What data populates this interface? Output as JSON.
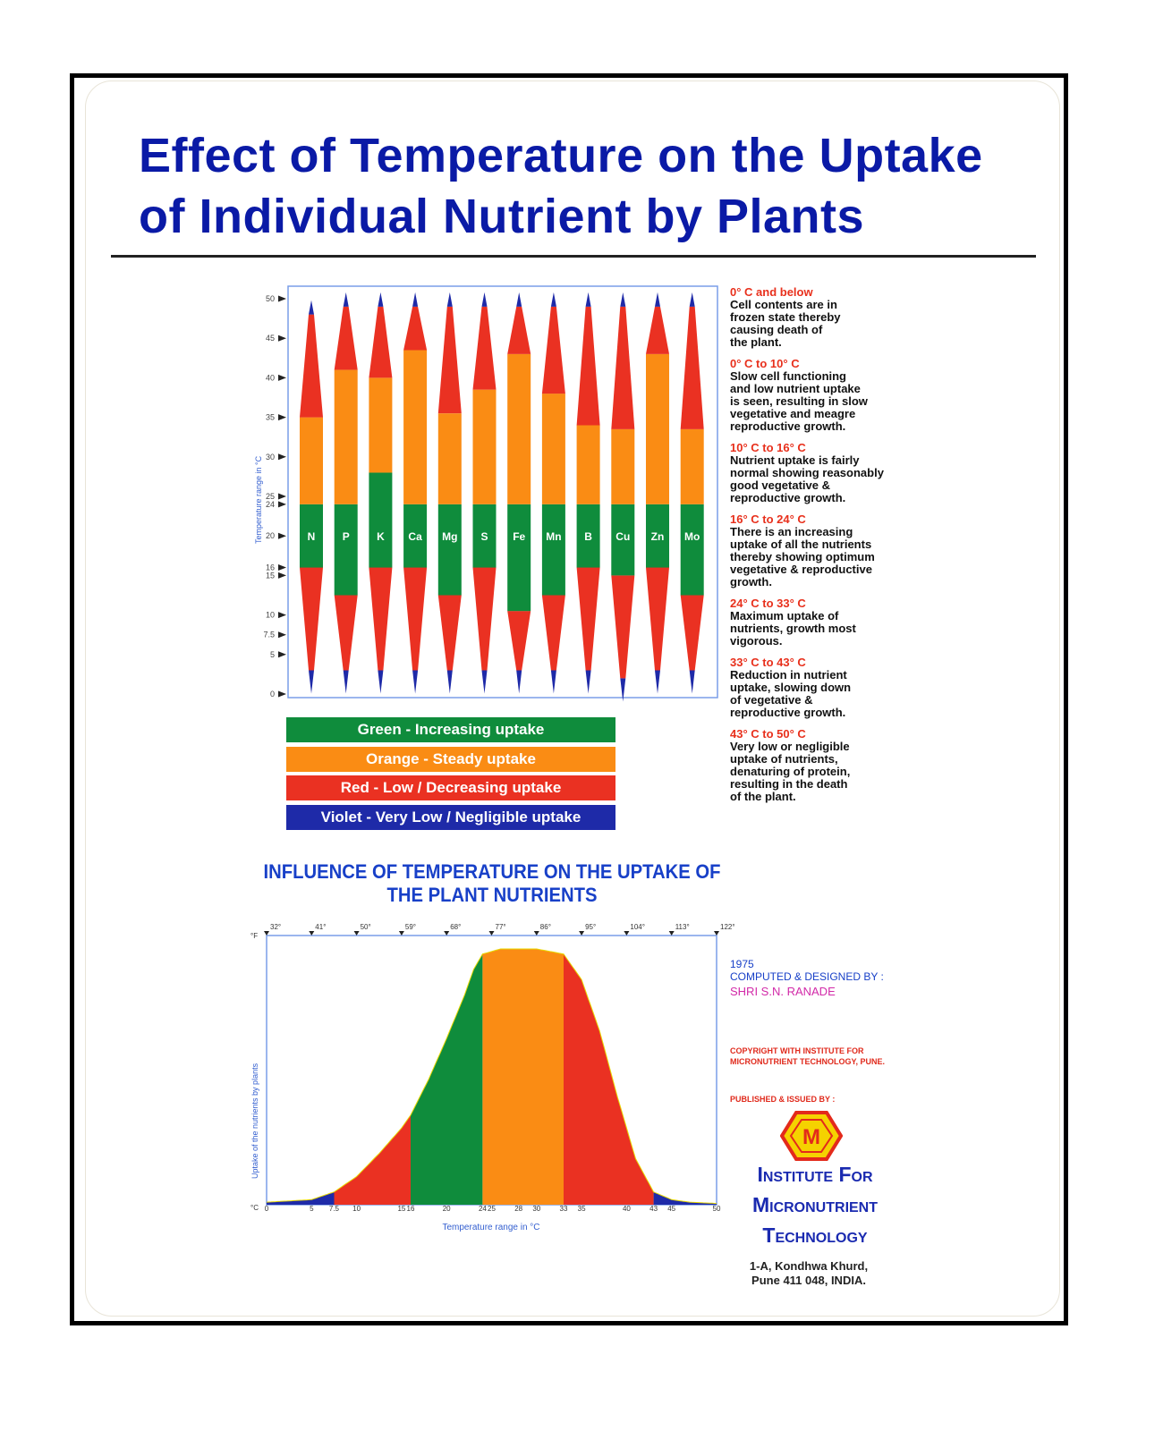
{
  "title": {
    "line1": "Effect of Temperature on the Uptake",
    "line2": "of Individual Nutrient by Plants"
  },
  "colors": {
    "green": "#0f8c3c",
    "orange": "#fa8c14",
    "red": "#ea3122",
    "violet": "#1e2aa8",
    "title_blue": "#0a1aa6",
    "note_red": "#e8301c"
  },
  "legend": [
    {
      "label": "Green - Increasing uptake",
      "color": "#0f8c3c"
    },
    {
      "label": "Orange - Steady uptake",
      "color": "#fa8c14"
    },
    {
      "label": "Red - Low / Decreasing uptake",
      "color": "#ea3122"
    },
    {
      "label": "Violet - Very Low / Negligible uptake",
      "color": "#1e2aa8"
    }
  ],
  "notes": [
    {
      "head": "0° C and below",
      "body": [
        "Cell contents are in",
        "frozen state thereby",
        "causing death of",
        "the plant."
      ]
    },
    {
      "head": "0° C  to 10° C",
      "body": [
        "Slow cell functioning",
        "and low nutrient uptake",
        "is seen, resulting in slow",
        "vegetative and meagre",
        "reproductive growth."
      ]
    },
    {
      "head": "10° C  to 16° C",
      "body": [
        "Nutrient uptake is fairly",
        "normal showing reasonably",
        "good vegetative &",
        "reproductive growth."
      ]
    },
    {
      "head": "16° C  to 24° C",
      "body": [
        "There is an increasing",
        "uptake of all the nutrients",
        "thereby showing optimum",
        "vegetative & reproductive",
        "growth."
      ]
    },
    {
      "head": "24° C  to 33° C",
      "body": [
        "Maximum uptake of",
        "nutrients, growth most",
        "vigorous."
      ]
    },
    {
      "head": "33° C  to 43° C",
      "body": [
        "Reduction in nutrient",
        "uptake, slowing down",
        "of vegetative &",
        "reproductive growth."
      ]
    },
    {
      "head": "43° C  to 50° C",
      "body": [
        "Very low or negligible",
        "uptake of nutrients,",
        "denaturing of protein,",
        "resulting in the death",
        "of the plant."
      ]
    }
  ],
  "chart_data": [
    {
      "type": "bar",
      "ylabel": "Temperature range in °C",
      "ylim": [
        0,
        50
      ],
      "y_ticks": [
        "0",
        "5",
        "7.5",
        "10",
        "15",
        "16",
        "20",
        "24",
        "25",
        "30",
        "35",
        "40",
        "45",
        "50"
      ],
      "y_tick_values": [
        0,
        5,
        7.5,
        10,
        15,
        16,
        20,
        24,
        25,
        30,
        35,
        40,
        45,
        50
      ],
      "categories": [
        "N",
        "P",
        "K",
        "Ca",
        "Mg",
        "S",
        "Fe",
        "Mn",
        "B",
        "Cu",
        "Zn",
        "Mo"
      ],
      "bands": [
        {
          "nutrient": "N",
          "green": [
            16,
            24
          ],
          "orange": [
            24,
            35
          ],
          "red_low": [
            3,
            16
          ],
          "red_high": [
            35,
            48
          ]
        },
        {
          "nutrient": "P",
          "green": [
            12.5,
            24
          ],
          "orange": [
            24,
            41
          ],
          "red_low": [
            3,
            12.5
          ],
          "red_high": [
            41,
            49
          ]
        },
        {
          "nutrient": "K",
          "green": [
            16,
            28
          ],
          "orange": [
            28,
            40
          ],
          "red_low": [
            3,
            16
          ],
          "red_high": [
            40,
            49
          ]
        },
        {
          "nutrient": "Ca",
          "green": [
            16,
            24
          ],
          "orange": [
            24,
            43.5
          ],
          "red_low": [
            3,
            16
          ],
          "red_high": [
            43.5,
            49
          ]
        },
        {
          "nutrient": "Mg",
          "green": [
            12.5,
            24
          ],
          "orange": [
            24,
            35.5
          ],
          "red_low": [
            3,
            12.5
          ],
          "red_high": [
            35.5,
            49
          ]
        },
        {
          "nutrient": "S",
          "green": [
            16,
            24
          ],
          "orange": [
            24,
            38.5
          ],
          "red_low": [
            3,
            16
          ],
          "red_high": [
            38.5,
            49
          ]
        },
        {
          "nutrient": "Fe",
          "green": [
            10.5,
            24
          ],
          "orange": [
            24,
            43
          ],
          "red_low": [
            3,
            10.5
          ],
          "red_high": [
            43,
            49
          ]
        },
        {
          "nutrient": "Mn",
          "green": [
            12.5,
            24
          ],
          "orange": [
            24,
            38
          ],
          "red_low": [
            3,
            12.5
          ],
          "red_high": [
            38,
            49
          ]
        },
        {
          "nutrient": "B",
          "green": [
            16,
            24
          ],
          "orange": [
            24,
            34
          ],
          "red_low": [
            3,
            16
          ],
          "red_high": [
            34,
            49
          ]
        },
        {
          "nutrient": "Cu",
          "green": [
            15,
            24
          ],
          "orange": [
            24,
            33.5
          ],
          "red_low": [
            2,
            15
          ],
          "red_high": [
            33.5,
            49
          ]
        },
        {
          "nutrient": "Zn",
          "green": [
            16,
            24
          ],
          "orange": [
            24,
            43
          ],
          "red_low": [
            3,
            16
          ],
          "red_high": [
            43,
            49
          ]
        },
        {
          "nutrient": "Mo",
          "green": [
            12.5,
            24
          ],
          "orange": [
            24,
            33.5
          ],
          "red_low": [
            3,
            12.5
          ],
          "red_high": [
            33.5,
            49
          ]
        }
      ]
    },
    {
      "type": "area",
      "title": "INFLUENCE OF TEMPERATURE ON THE UPTAKE OF THE PLANT NUTRIENTS",
      "title_lines": [
        "INFLUENCE OF TEMPERATURE ON THE UPTAKE OF",
        "THE PLANT NUTRIENTS"
      ],
      "xlabel": "Temperature range in °C",
      "ylabel": "Uptake of the nutrients by plants",
      "xlim": [
        0,
        50
      ],
      "x_ticks": [
        "0",
        "5",
        "7.5",
        "10",
        "15",
        "16",
        "20",
        "24",
        "25",
        "28",
        "30",
        "33",
        "35",
        "40",
        "43",
        "45",
        "50"
      ],
      "x_tick_values": [
        0,
        5,
        7.5,
        10,
        15,
        16,
        20,
        24,
        25,
        28,
        30,
        33,
        35,
        40,
        43,
        45,
        50
      ],
      "x_unit_c": "°C",
      "x_unit_f": "°F",
      "f_ticks": [
        "32°",
        "41°",
        "50°",
        "59°",
        "68°",
        "77°",
        "86°",
        "95°",
        "104°",
        "113°",
        "122°"
      ],
      "f_tick_values": [
        0,
        5,
        10,
        15,
        20,
        25,
        30,
        35,
        40,
        45,
        50
      ],
      "curve": {
        "x": [
          0,
          5,
          7.5,
          10,
          12.5,
          15,
          16,
          18,
          20,
          22,
          23,
          24,
          26,
          28,
          30,
          33,
          35,
          37,
          39,
          41,
          43,
          45,
          47,
          50
        ],
        "y": [
          1,
          2,
          5,
          11,
          20,
          30,
          35,
          49,
          65,
          82,
          92,
          98,
          100,
          100,
          100,
          98,
          88,
          68,
          42,
          18,
          5,
          2,
          1,
          0.5
        ]
      },
      "bands": [
        {
          "range": [
            0,
            7.5
          ],
          "color": "violet"
        },
        {
          "range": [
            7.5,
            16
          ],
          "color": "red"
        },
        {
          "range": [
            16,
            24
          ],
          "color": "green"
        },
        {
          "range": [
            24,
            33
          ],
          "color": "orange"
        },
        {
          "range": [
            33,
            43
          ],
          "color": "red"
        },
        {
          "range": [
            43,
            50
          ],
          "color": "violet"
        }
      ]
    }
  ],
  "credits": {
    "year": "1975",
    "designed_by": "COMPUTED & DESIGNED BY :",
    "designer": "SHRI S.N. RANADE",
    "copyright_line1": "COPYRIGHT WITH INSTITUTE FOR",
    "copyright_line2": "MICRONUTRIENT TECHNOLOGY, PUNE.",
    "published": "PUBLISHED & ISSUED BY :"
  },
  "institute": {
    "line1": "Institute For",
    "line2": "Micronutrient",
    "line3": "Technology",
    "address1": "1-A, Kondhwa Khurd,",
    "address2": "Pune 411 048, INDIA.",
    "logo_letters": "M",
    "logo_colors": [
      "#f5d200",
      "#e32a1b"
    ]
  }
}
